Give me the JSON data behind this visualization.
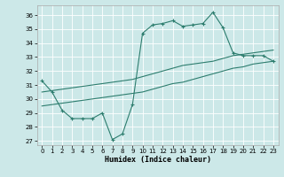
{
  "xlabel": "Humidex (Indice chaleur)",
  "bg_color": "#cce8e8",
  "grid_color": "#ffffff",
  "line_color": "#2d7d6e",
  "xlim": [
    -0.5,
    23.5
  ],
  "ylim": [
    26.7,
    36.7
  ],
  "yticks": [
    27,
    28,
    29,
    30,
    31,
    32,
    33,
    34,
    35,
    36
  ],
  "xticks": [
    0,
    1,
    2,
    3,
    4,
    5,
    6,
    7,
    8,
    9,
    10,
    11,
    12,
    13,
    14,
    15,
    16,
    17,
    18,
    19,
    20,
    21,
    22,
    23
  ],
  "line1_x": [
    0,
    1,
    2,
    3,
    4,
    5,
    6,
    7,
    8,
    9,
    10,
    11,
    12,
    13,
    14,
    15,
    16,
    17,
    18,
    19,
    20,
    21,
    22,
    23
  ],
  "line1_y": [
    31.3,
    30.5,
    29.2,
    28.6,
    28.6,
    28.6,
    29.0,
    27.1,
    27.5,
    29.6,
    34.7,
    35.3,
    35.4,
    35.6,
    35.2,
    35.3,
    35.4,
    36.2,
    35.1,
    33.3,
    33.1,
    33.1,
    33.1,
    32.7
  ],
  "line2_x": [
    0,
    1,
    2,
    3,
    4,
    5,
    6,
    7,
    8,
    9,
    10,
    11,
    12,
    13,
    14,
    15,
    16,
    17,
    18,
    19,
    20,
    21,
    22,
    23
  ],
  "line2_y": [
    30.5,
    30.6,
    30.7,
    30.8,
    30.9,
    31.0,
    31.1,
    31.2,
    31.3,
    31.4,
    31.6,
    31.8,
    32.0,
    32.2,
    32.4,
    32.5,
    32.6,
    32.7,
    32.9,
    33.1,
    33.2,
    33.3,
    33.4,
    33.5
  ],
  "line3_x": [
    0,
    1,
    2,
    3,
    4,
    5,
    6,
    7,
    8,
    9,
    10,
    11,
    12,
    13,
    14,
    15,
    16,
    17,
    18,
    19,
    20,
    21,
    22,
    23
  ],
  "line3_y": [
    29.5,
    29.6,
    29.7,
    29.8,
    29.9,
    30.0,
    30.1,
    30.2,
    30.3,
    30.4,
    30.5,
    30.7,
    30.9,
    31.1,
    31.2,
    31.4,
    31.6,
    31.8,
    32.0,
    32.2,
    32.3,
    32.5,
    32.6,
    32.7
  ]
}
